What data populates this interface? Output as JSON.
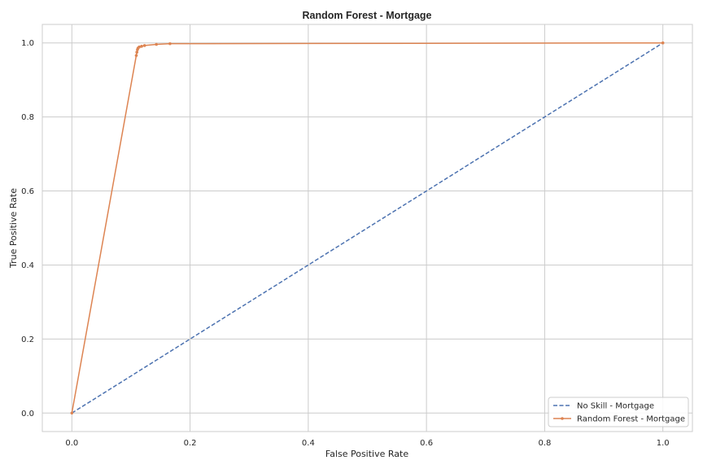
{
  "chart_data": {
    "type": "line",
    "title": "Random Forest - Mortgage",
    "xlabel": "False Positive Rate",
    "ylabel": "True Positive Rate",
    "xlim": [
      -0.05,
      1.05
    ],
    "ylim": [
      -0.05,
      1.05
    ],
    "xticks": [
      0.0,
      0.2,
      0.4,
      0.6,
      0.8,
      1.0
    ],
    "yticks": [
      0.0,
      0.2,
      0.4,
      0.6,
      0.8,
      1.0
    ],
    "xtick_labels": [
      "0.0",
      "0.2",
      "0.4",
      "0.6",
      "0.8",
      "1.0"
    ],
    "ytick_labels": [
      "0.0",
      "0.2",
      "0.4",
      "0.6",
      "0.8",
      "1.0"
    ],
    "grid": true,
    "legend_position": "lower right",
    "series": [
      {
        "name": "No Skill - Mortgage",
        "style": "dashed",
        "marker": "none",
        "color": "#4c72b0",
        "x": [
          0.0,
          1.0
        ],
        "y": [
          0.0,
          1.0
        ]
      },
      {
        "name": "Random Forest - Mortgage",
        "style": "solid",
        "marker": "dot",
        "color": "#dd8452",
        "x": [
          0.0,
          0.109,
          0.11,
          0.111,
          0.112,
          0.114,
          0.118,
          0.123,
          0.143,
          0.166,
          1.0
        ],
        "y": [
          0.0,
          0.966,
          0.975,
          0.982,
          0.986,
          0.989,
          0.991,
          0.993,
          0.996,
          0.998,
          1.0
        ]
      }
    ]
  }
}
